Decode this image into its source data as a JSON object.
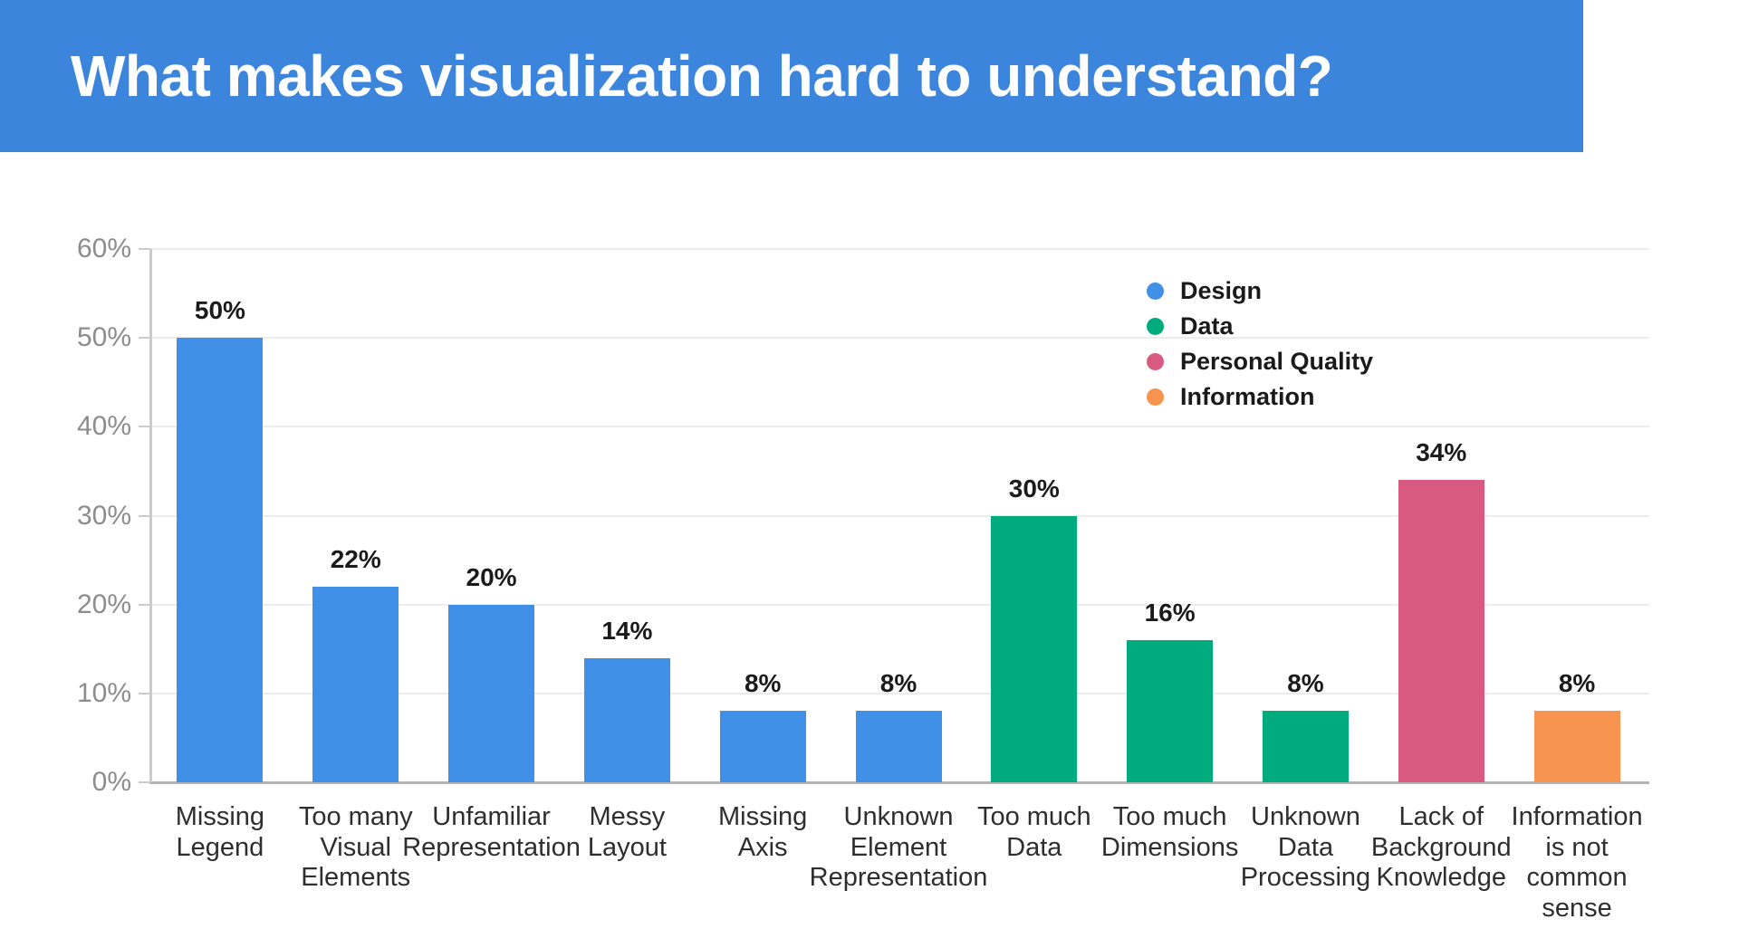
{
  "header": {
    "title": "What makes visualization hard to understand?"
  },
  "chart_data": {
    "type": "bar",
    "title": "What makes visualization hard to understand?",
    "xlabel": "",
    "ylabel": "",
    "ylim": [
      0,
      60
    ],
    "grid": true,
    "yticks": [
      {
        "value": 60,
        "label": "60%"
      },
      {
        "value": 50,
        "label": "50%"
      },
      {
        "value": 40,
        "label": "40%"
      },
      {
        "value": 30,
        "label": "30%"
      },
      {
        "value": 20,
        "label": "20%"
      },
      {
        "value": 10,
        "label": "10%"
      },
      {
        "value": 0,
        "label": "0%"
      }
    ],
    "bars": [
      {
        "label": "Missing Legend",
        "display": "Missing\nLegend",
        "value": 50,
        "value_label": "50%",
        "category": "Design"
      },
      {
        "label": "Too many Visual Elements",
        "display": "Too many\nVisual\nElements",
        "value": 22,
        "value_label": "22%",
        "category": "Design"
      },
      {
        "label": "Unfamiliar Representation",
        "display": "Unfamiliar\nRepresentation",
        "value": 20,
        "value_label": "20%",
        "category": "Design"
      },
      {
        "label": "Messy Layout",
        "display": "Messy\nLayout",
        "value": 14,
        "value_label": "14%",
        "category": "Design"
      },
      {
        "label": "Missing Axis",
        "display": "Missing\nAxis",
        "value": 8,
        "value_label": "8%",
        "category": "Design"
      },
      {
        "label": "Unknown Element Representation",
        "display": "Unknown\nElement\nRepresentation",
        "value": 8,
        "value_label": "8%",
        "category": "Design"
      },
      {
        "label": "Too much Data",
        "display": "Too much\nData",
        "value": 30,
        "value_label": "30%",
        "category": "Data"
      },
      {
        "label": "Too much Dimensions",
        "display": "Too much\nDimensions",
        "value": 16,
        "value_label": "16%",
        "category": "Data"
      },
      {
        "label": "Unknown Data Processing",
        "display": "Unknown\nData\nProcessing",
        "value": 8,
        "value_label": "8%",
        "category": "Data"
      },
      {
        "label": "Lack of Background Knowledge",
        "display": "Lack of\nBackground\nKnowledge",
        "value": 34,
        "value_label": "34%",
        "category": "Personal Quality"
      },
      {
        "label": "Information is not common sense",
        "display": "Information\nis not\ncommon\nsense",
        "value": 8,
        "value_label": "8%",
        "category": "Information"
      }
    ],
    "legend": {
      "position": "top-right",
      "entries": [
        {
          "label": "Design",
          "color": "#4190E8"
        },
        {
          "label": "Data",
          "color": "#00AB7E"
        },
        {
          "label": "Personal Quality",
          "color": "#D95A80"
        },
        {
          "label": "Information",
          "color": "#F99350"
        }
      ]
    },
    "colors": {
      "banner_background": "#3B85DD",
      "title_text": "#FFFFFF",
      "gridline": "#ECECEC",
      "baseline": "#B3B3B3",
      "axis_line": "#CBCBCB",
      "y_label_text": "#8C8C8C",
      "x_label_text": "#2E2E2E",
      "value_label_text": "#1B1B1B",
      "legend_text": "#1A1A1A"
    }
  }
}
